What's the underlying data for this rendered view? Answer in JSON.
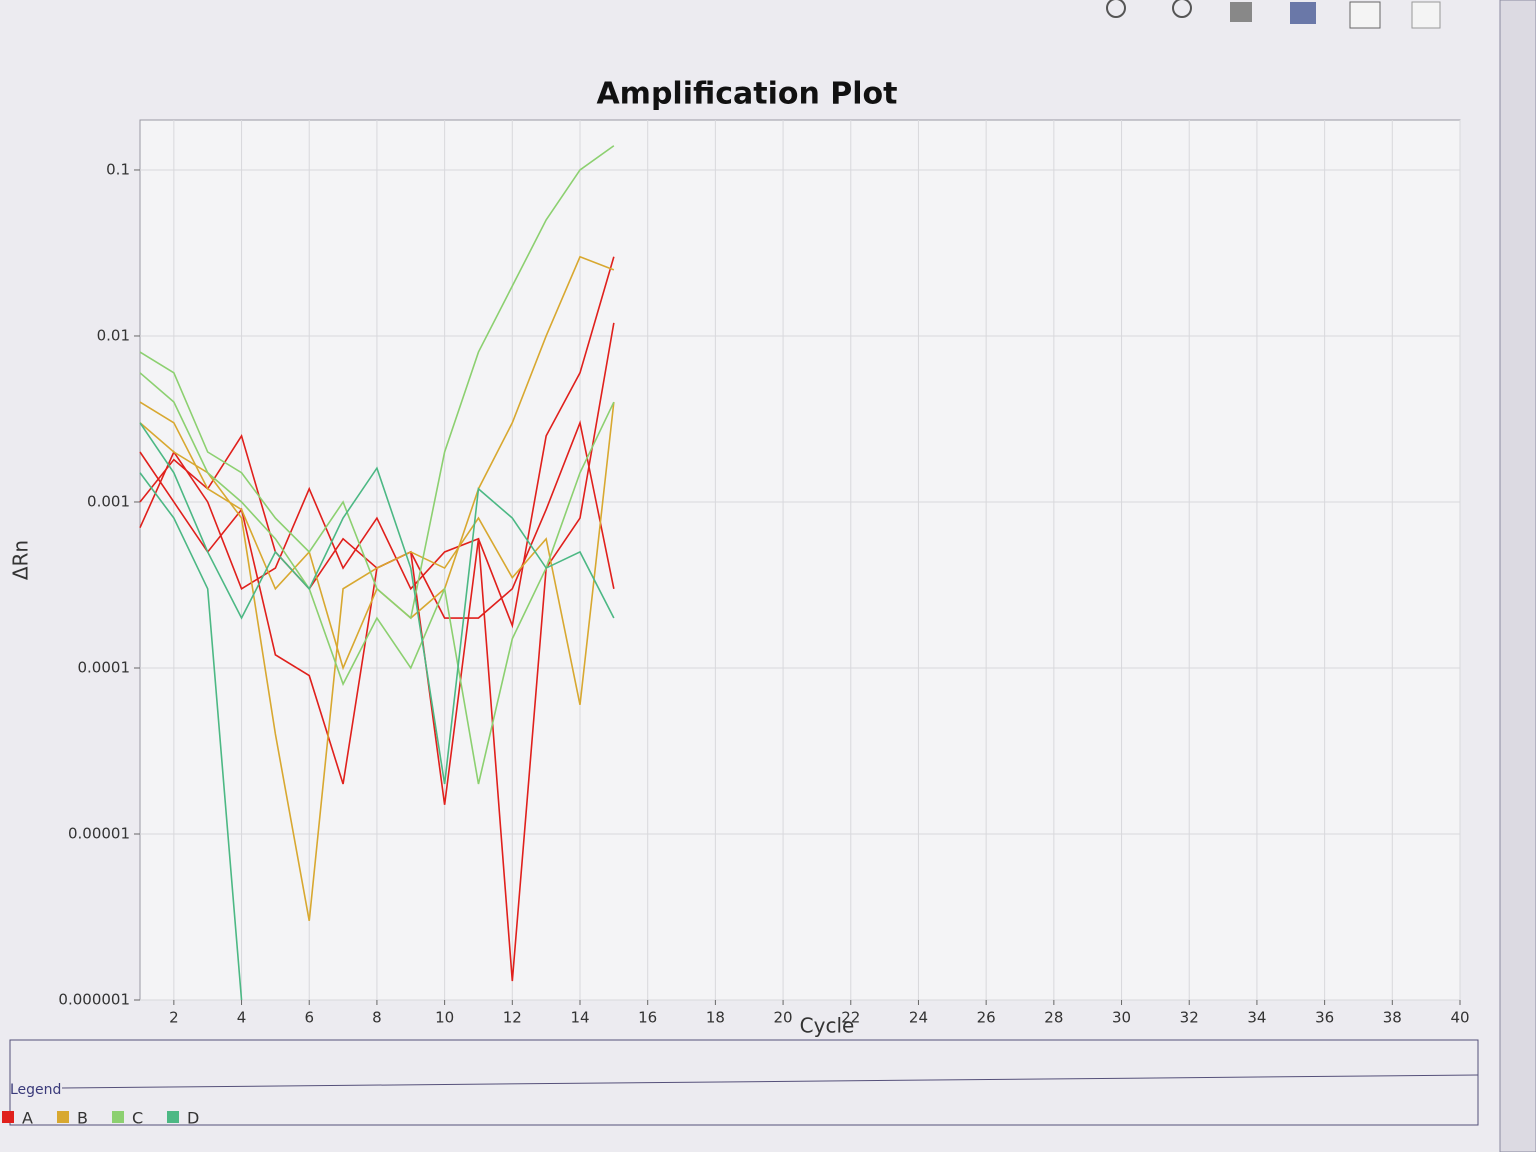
{
  "chart_data": {
    "type": "line",
    "title": "Amplification Plot",
    "xlabel": "Cycle",
    "ylabel": "ΔRn",
    "legend_title": "Legend",
    "yscale": "log",
    "grid": true,
    "x": [
      1,
      2,
      3,
      4,
      5,
      6,
      7,
      8,
      9,
      10,
      11,
      12,
      13,
      14,
      15
    ],
    "xlim": [
      1,
      40
    ],
    "xticks": [
      2,
      4,
      6,
      8,
      10,
      12,
      14,
      16,
      18,
      20,
      22,
      24,
      26,
      28,
      30,
      32,
      34,
      36,
      38,
      40
    ],
    "ylim": [
      1e-06,
      0.2
    ],
    "yticks": [
      0.1,
      0.01,
      0.001,
      0.0001,
      1e-05,
      1e-06
    ],
    "series": [
      {
        "name": "A",
        "color": "#e0201c",
        "lines": [
          [
            0.0007,
            0.002,
            0.001,
            0.0003,
            0.0004,
            0.0012,
            0.0004,
            0.0008,
            0.0003,
            0.0005,
            0.0006,
            1.3e-06,
            0.0004,
            0.0008,
            0.012
          ],
          [
            0.001,
            0.0018,
            0.0012,
            0.0025,
            0.0005,
            0.0003,
            0.0006,
            0.0004,
            0.0005,
            1.5e-05,
            0.0006,
            0.00018,
            0.0025,
            0.006,
            0.03
          ],
          [
            0.002,
            0.001,
            0.0005,
            0.0009,
            0.00012,
            9e-05,
            2e-05,
            0.0004,
            0.0005,
            0.0002,
            0.0002,
            0.0003,
            0.0009,
            0.003,
            0.0003
          ]
        ]
      },
      {
        "name": "B",
        "color": "#d8a830",
        "lines": [
          [
            0.003,
            0.002,
            0.0015,
            0.0008,
            4e-05,
            3e-06,
            0.0003,
            0.0004,
            0.0005,
            0.0004,
            0.0008,
            0.00035,
            0.0006,
            6e-05,
            0.004
          ],
          [
            0.004,
            0.003,
            0.0012,
            0.0009,
            0.0003,
            0.0005,
            0.0001,
            0.0003,
            0.0002,
            0.0003,
            0.0012,
            0.003,
            0.01,
            0.03,
            0.025
          ]
        ]
      },
      {
        "name": "C",
        "color": "#8cd070",
        "lines": [
          [
            0.008,
            0.006,
            0.002,
            0.0015,
            0.0008,
            0.0005,
            0.001,
            0.0003,
            0.0002,
            0.002,
            0.008,
            0.02,
            0.05,
            0.1,
            0.14
          ],
          [
            0.006,
            0.004,
            0.0015,
            0.001,
            0.0006,
            0.0003,
            8e-05,
            0.0002,
            0.0001,
            0.0003,
            2e-05,
            0.00015,
            0.0004,
            0.0015,
            0.004
          ]
        ]
      },
      {
        "name": "D",
        "color": "#4cb884",
        "lines": [
          [
            0.003,
            0.0015,
            0.0005,
            0.0002,
            0.0005,
            0.0003,
            0.0008,
            0.0016,
            0.0004,
            2e-05,
            0.0012,
            0.0008,
            0.0004,
            0.0005,
            0.0002
          ],
          [
            0.0015,
            0.0008,
            0.0003,
            1e-06,
            null,
            null,
            null,
            null,
            null,
            null,
            null,
            null,
            null,
            null,
            null
          ]
        ]
      }
    ]
  }
}
